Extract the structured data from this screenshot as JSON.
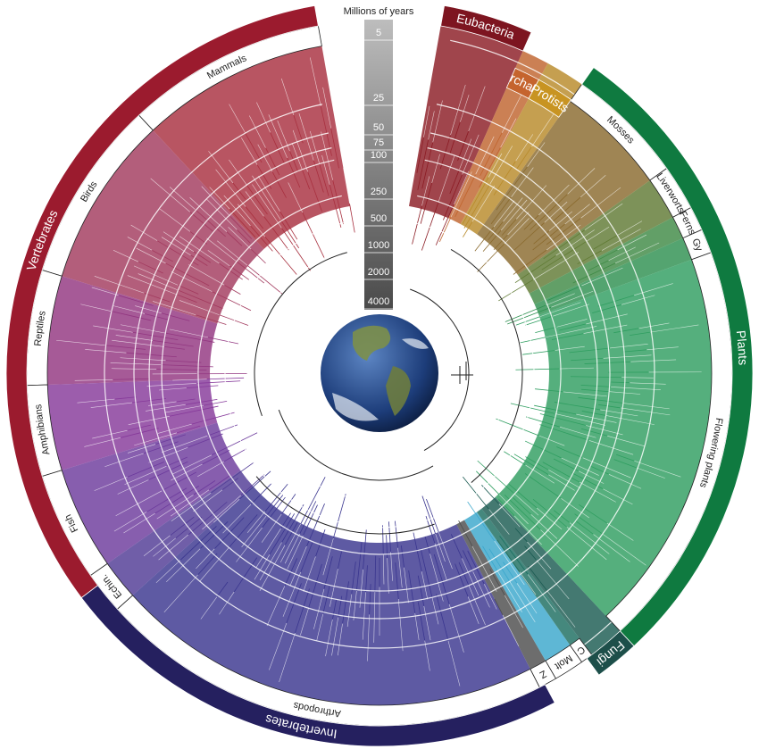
{
  "scale": {
    "title": "Millions of years",
    "ticks": [
      5,
      25,
      50,
      75,
      100,
      250,
      500,
      1000,
      2000,
      4000
    ]
  },
  "groups": [
    {
      "label": "Eubacteria"
    },
    {
      "label": "Archae."
    },
    {
      "label": "Protists"
    },
    {
      "label": "Plants"
    },
    {
      "label": "Fungi"
    },
    {
      "label": "Invertebrates"
    },
    {
      "label": "Vertebrates"
    }
  ],
  "subgroups": [
    {
      "label": "Mammals"
    },
    {
      "label": "Birds"
    },
    {
      "label": "Reptiles"
    },
    {
      "label": "Amphibians"
    },
    {
      "label": "Fish"
    },
    {
      "label": "Echin."
    },
    {
      "label": "Arthropods"
    },
    {
      "label": "Z"
    },
    {
      "label": "Molt"
    },
    {
      "label": "C"
    },
    {
      "label": "Mosses"
    },
    {
      "label": "Liverworts"
    },
    {
      "label": "Ferns"
    },
    {
      "label": "Gy"
    },
    {
      "label": "Flowering plants"
    }
  ]
}
